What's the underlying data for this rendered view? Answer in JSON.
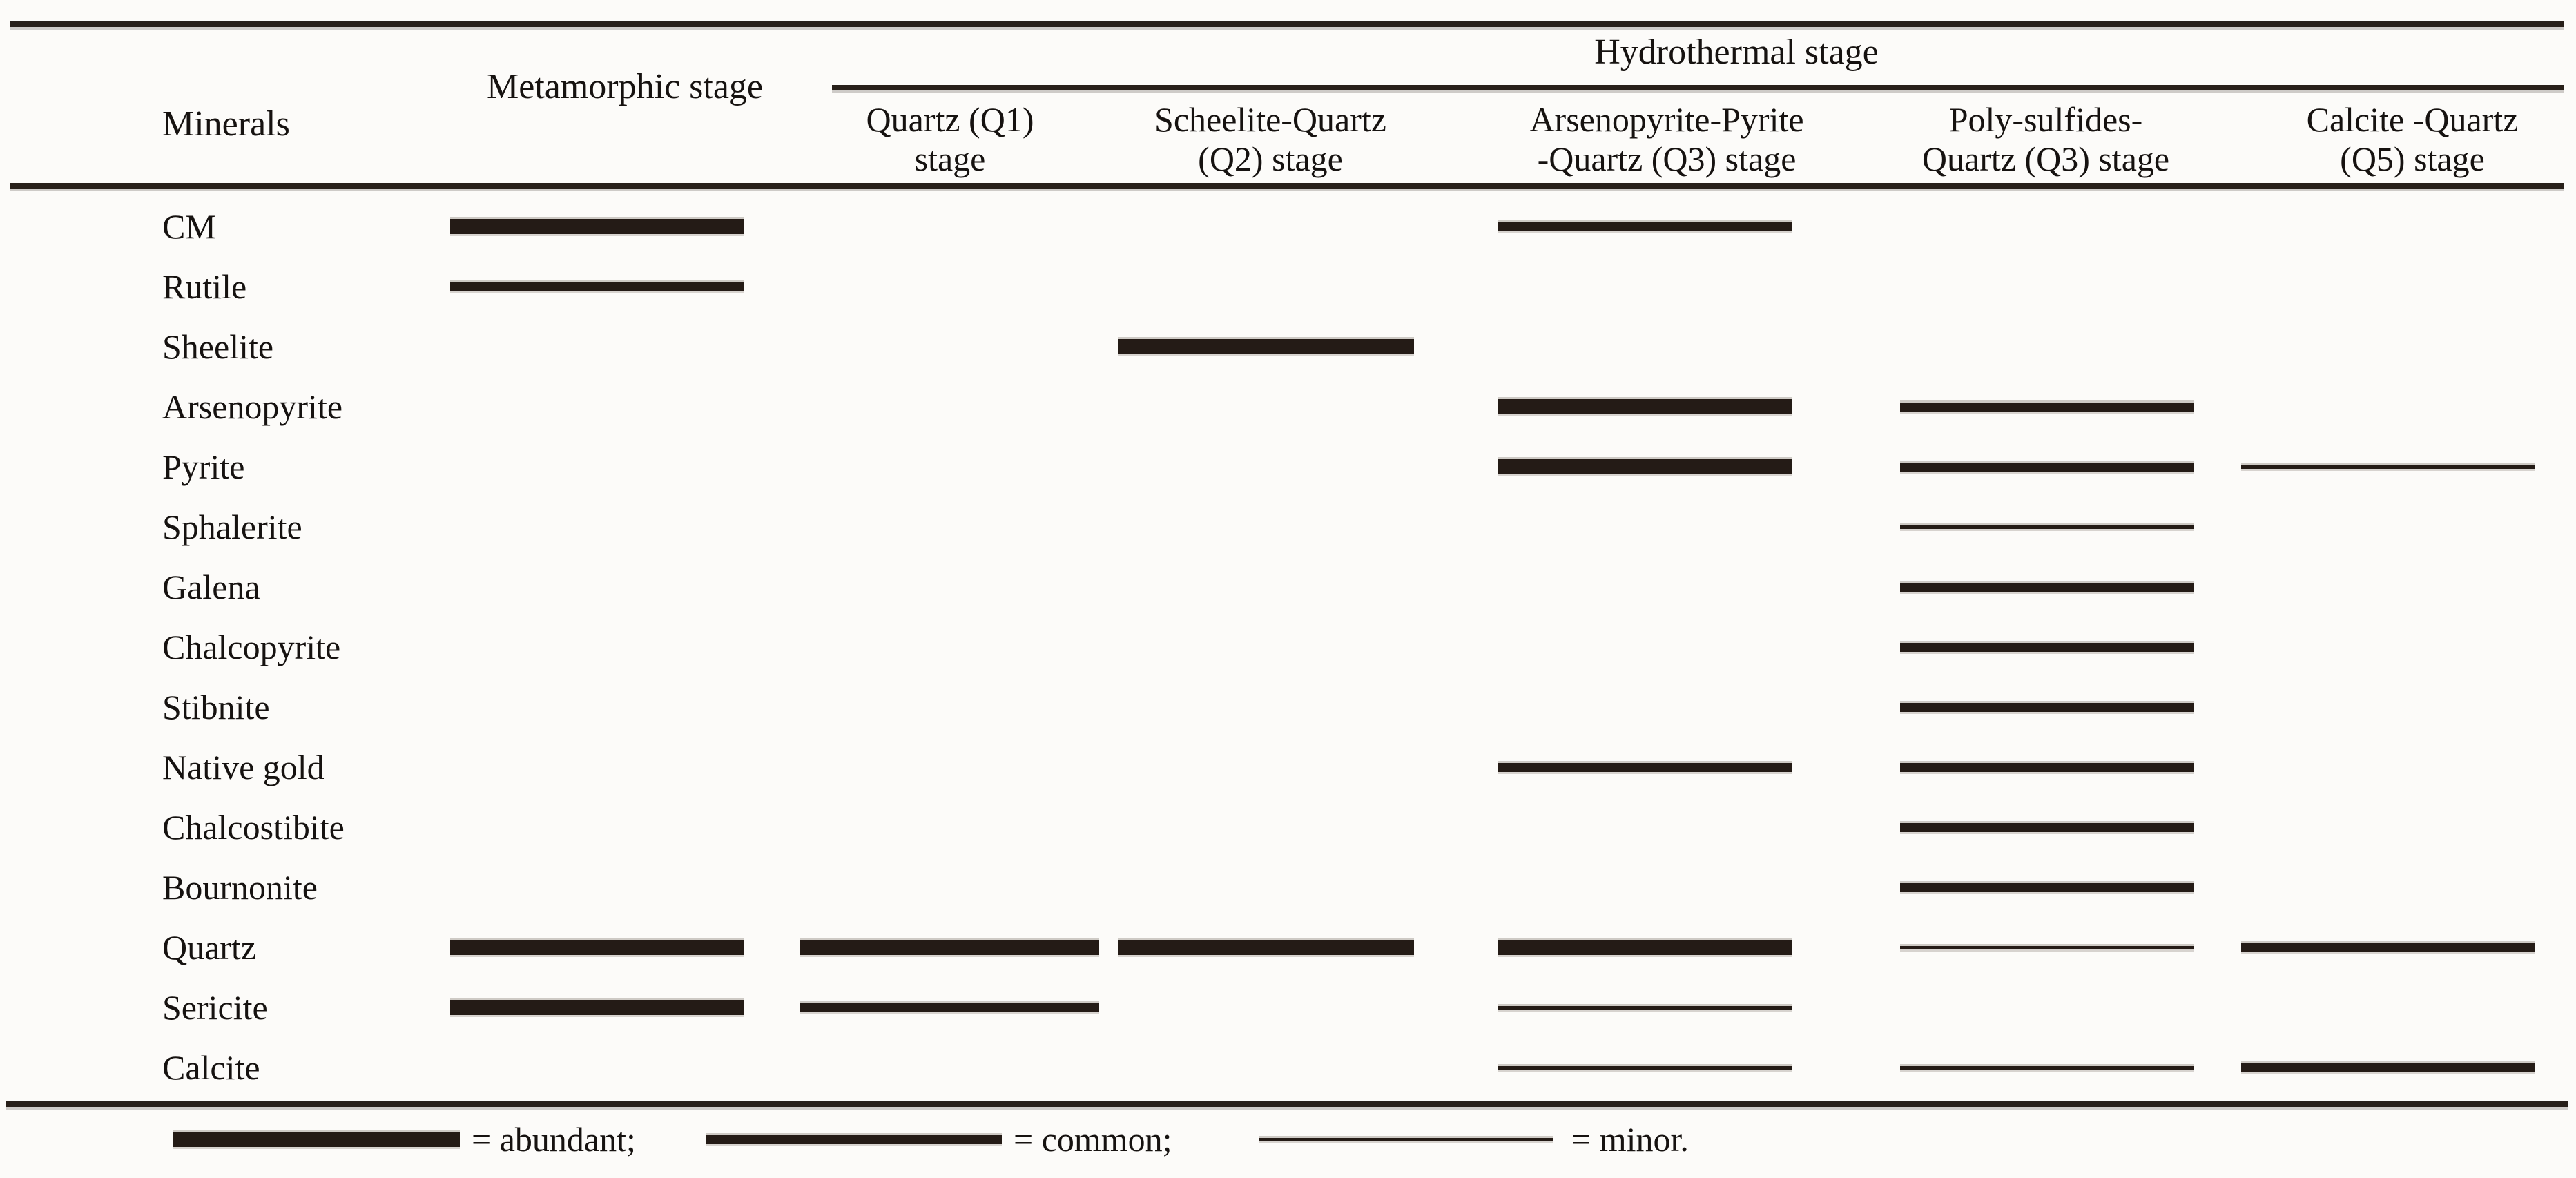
{
  "header": {
    "minerals_label": "Minerals",
    "metamorphic_label": "Metamorphic stage",
    "hydrothermal_label": "Hydrothermal stage",
    "stage_columns": [
      {
        "id": "q1",
        "line1": "Quartz (Q1)",
        "line2": "stage"
      },
      {
        "id": "q2",
        "line1": "Scheelite-Quartz",
        "line2": "(Q2) stage"
      },
      {
        "id": "q3",
        "line1": "Arsenopyrite-Pyrite",
        "line2": "-Quartz (Q3) stage"
      },
      {
        "id": "poly",
        "line1": "Poly-sulfides-",
        "line2": "Quartz (Q3) stage"
      },
      {
        "id": "cq",
        "line1": "Calcite -Quartz",
        "line2": "(Q5) stage"
      }
    ]
  },
  "abundance_levels": {
    "abundant": 22,
    "common": 13,
    "minor": 5
  },
  "colors": {
    "bar": "#241b16",
    "rule": "#28201a",
    "text": "#161210",
    "background": "#fcfbf9"
  },
  "rows": [
    {
      "mineral": "CM",
      "bars": [
        {
          "column": "metamorphic",
          "level": "abundant"
        },
        {
          "column": "q3",
          "level": "common"
        }
      ]
    },
    {
      "mineral": "Rutile",
      "bars": [
        {
          "column": "metamorphic",
          "level": "common"
        }
      ]
    },
    {
      "mineral": "Sheelite",
      "bars": [
        {
          "column": "q2",
          "level": "abundant"
        }
      ]
    },
    {
      "mineral": "Arsenopyrite",
      "bars": [
        {
          "column": "q3",
          "level": "abundant"
        },
        {
          "column": "poly",
          "level": "common"
        }
      ]
    },
    {
      "mineral": "Pyrite",
      "bars": [
        {
          "column": "q3",
          "level": "abundant"
        },
        {
          "column": "poly",
          "level": "common"
        },
        {
          "column": "cq",
          "level": "minor"
        }
      ]
    },
    {
      "mineral": "Sphalerite",
      "bars": [
        {
          "column": "poly",
          "level": "minor"
        }
      ]
    },
    {
      "mineral": "Galena",
      "bars": [
        {
          "column": "poly",
          "level": "common"
        }
      ]
    },
    {
      "mineral": "Chalcopyrite",
      "bars": [
        {
          "column": "poly",
          "level": "common"
        }
      ]
    },
    {
      "mineral": "Stibnite",
      "bars": [
        {
          "column": "poly",
          "level": "common"
        }
      ]
    },
    {
      "mineral": "Native gold",
      "bars": [
        {
          "column": "q3",
          "level": "common"
        },
        {
          "column": "poly",
          "level": "common"
        }
      ]
    },
    {
      "mineral": "Chalcostibite",
      "bars": [
        {
          "column": "poly",
          "level": "common"
        }
      ]
    },
    {
      "mineral": "Bournonite",
      "bars": [
        {
          "column": "poly",
          "level": "common"
        }
      ]
    },
    {
      "mineral": "Quartz",
      "bars": [
        {
          "column": "metamorphic",
          "level": "abundant"
        },
        {
          "column": "q1",
          "level": "abundant"
        },
        {
          "column": "q2",
          "level": "abundant"
        },
        {
          "column": "q3",
          "level": "abundant"
        },
        {
          "column": "poly",
          "level": "minor"
        },
        {
          "column": "cq",
          "level": "common"
        }
      ]
    },
    {
      "mineral": "Sericite",
      "bars": [
        {
          "column": "metamorphic",
          "level": "abundant"
        },
        {
          "column": "q1",
          "level": "common"
        },
        {
          "column": "q3",
          "level": "minor"
        }
      ]
    },
    {
      "mineral": "Calcite",
      "bars": [
        {
          "column": "q3",
          "level": "minor"
        },
        {
          "column": "poly",
          "level": "minor"
        },
        {
          "column": "cq",
          "level": "common"
        }
      ]
    }
  ],
  "legend": [
    {
      "level": "abundant",
      "label": "= abundant;"
    },
    {
      "level": "common",
      "label": "= common;"
    },
    {
      "level": "minor",
      "label": "= minor."
    }
  ],
  "chart_data": {
    "type": "table",
    "title": "Mineral paragenesis: metamorphic and hydrothermal stages",
    "row_header": "Minerals",
    "column_group": {
      "label": "Hydrothermal stage",
      "members": [
        "Quartz (Q1) stage",
        "Scheelite-Quartz (Q2) stage",
        "Arsenopyrite-Pyrite-Quartz (Q3) stage",
        "Poly-sulfides-Quartz (Q3) stage",
        "Calcite -Quartz (Q5) stage"
      ]
    },
    "categories": [
      "Metamorphic stage",
      "Quartz (Q1) stage",
      "Scheelite-Quartz (Q2) stage",
      "Arsenopyrite-Pyrite-Quartz (Q3) stage",
      "Poly-sulfides-Quartz (Q3) stage",
      "Calcite -Quartz (Q5) stage"
    ],
    "series": [
      {
        "name": "CM",
        "values": [
          "abundant",
          "",
          "",
          "common",
          "",
          ""
        ]
      },
      {
        "name": "Rutile",
        "values": [
          "common",
          "",
          "",
          "",
          "",
          ""
        ]
      },
      {
        "name": "Sheelite",
        "values": [
          "",
          "",
          "abundant",
          "",
          "",
          ""
        ]
      },
      {
        "name": "Arsenopyrite",
        "values": [
          "",
          "",
          "",
          "abundant",
          "common",
          ""
        ]
      },
      {
        "name": "Pyrite",
        "values": [
          "",
          "",
          "",
          "abundant",
          "common",
          "minor"
        ]
      },
      {
        "name": "Sphalerite",
        "values": [
          "",
          "",
          "",
          "",
          "minor",
          ""
        ]
      },
      {
        "name": "Galena",
        "values": [
          "",
          "",
          "",
          "",
          "common",
          ""
        ]
      },
      {
        "name": "Chalcopyrite",
        "values": [
          "",
          "",
          "",
          "",
          "common",
          ""
        ]
      },
      {
        "name": "Stibnite",
        "values": [
          "",
          "",
          "",
          "",
          "common",
          ""
        ]
      },
      {
        "name": "Native gold",
        "values": [
          "",
          "",
          "",
          "common",
          "common",
          ""
        ]
      },
      {
        "name": "Chalcostibite",
        "values": [
          "",
          "",
          "",
          "",
          "common",
          ""
        ]
      },
      {
        "name": "Bournonite",
        "values": [
          "",
          "",
          "",
          "",
          "common",
          ""
        ]
      },
      {
        "name": "Quartz",
        "values": [
          "abundant",
          "abundant",
          "abundant",
          "abundant",
          "minor",
          "common"
        ]
      },
      {
        "name": "Sericite",
        "values": [
          "abundant",
          "common",
          "",
          "minor",
          "",
          ""
        ]
      },
      {
        "name": "Calcite",
        "values": [
          "",
          "",
          "",
          "minor",
          "minor",
          "common"
        ]
      }
    ],
    "legend_note": "thick bar = abundant; medium bar = common; thin bar = minor"
  }
}
